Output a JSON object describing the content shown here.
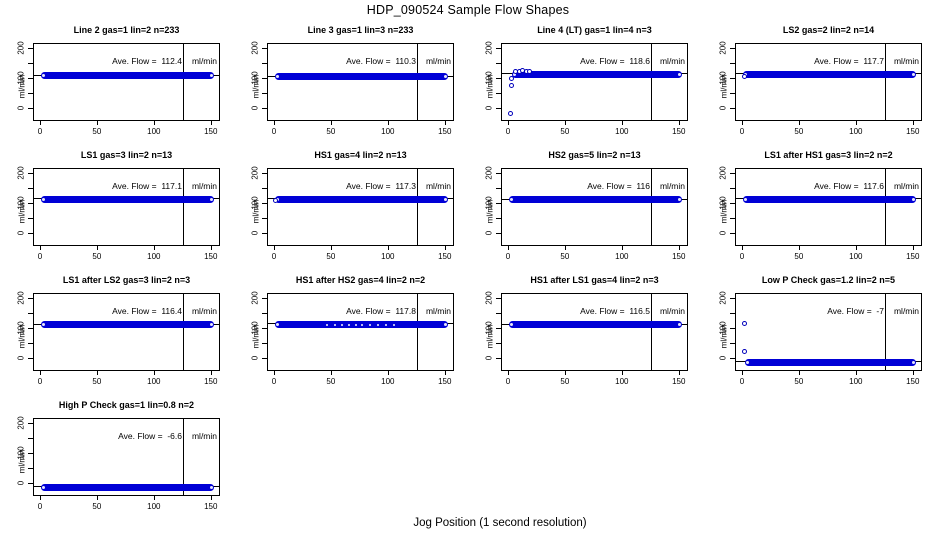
{
  "page": {
    "title": "HDP_090524  Sample Flow Shapes",
    "xlabel": "Jog Position (1 second resolution)"
  },
  "chart_data": {
    "type": "scatter",
    "title": "HDP_090524  Sample Flow Shapes",
    "xlabel": "Jog Position (1 second resolution)",
    "ylabel": "ml/min",
    "layout": {
      "rows": 4,
      "cols": 4,
      "filled_panels": 13,
      "grid": false
    },
    "x_ticks": [
      0,
      50,
      100,
      150
    ],
    "y_ticks_labeled": [
      0,
      100,
      200
    ],
    "y_ticks_minor": [
      50,
      150
    ],
    "xlim": [
      -6.1,
      158.1
    ],
    "ylim": [
      -43,
      217
    ],
    "vline_x": 125,
    "band_x_end": 152,
    "point_color": "#0000d6",
    "point_edge_color": "#0000bb",
    "annotation_y": 160,
    "panels": [
      {
        "title": "Line 2 gas=1 lin=2 n=233",
        "ave_flow": 112.4,
        "ave_text": "Ave. Flow =  112.4",
        "unit": "ml/min",
        "band_y": 112,
        "band_x_start": 0,
        "points": [],
        "gaps": []
      },
      {
        "title": "Line 3 gas=1 lin=3 n=233",
        "ave_flow": 110.3,
        "ave_text": "Ave. Flow =  110.3",
        "unit": "ml/min",
        "band_y": 110,
        "band_x_start": 0,
        "points": [],
        "gaps": []
      },
      {
        "title": "Line 4 (LT) gas=1 lin=4 n=3",
        "ave_flow": 118.6,
        "ave_text": "Ave. Flow =  118.6",
        "unit": "ml/min",
        "band_y": 116,
        "band_x_start": 3,
        "points": [
          [
            1,
            -13
          ],
          [
            2,
            80
          ],
          [
            2.5,
            103
          ],
          [
            6,
            124
          ],
          [
            9,
            127
          ],
          [
            12,
            128
          ],
          [
            15,
            127
          ],
          [
            18,
            124
          ]
        ],
        "gaps": []
      },
      {
        "title": "LS2 gas=2 lin=2 n=14",
        "ave_flow": 117.7,
        "ave_text": "Ave. Flow =  117.7",
        "unit": "ml/min",
        "band_y": 117,
        "band_x_start": 0,
        "points": [
          [
            1,
            110
          ]
        ],
        "gaps": []
      },
      {
        "title": "LS1 gas=3 lin=2 n=13",
        "ave_flow": 117.1,
        "ave_text": "Ave. Flow =  117.1",
        "unit": "ml/min",
        "band_y": 117,
        "band_x_start": 0,
        "points": [],
        "gaps": []
      },
      {
        "title": "HS1 gas=4 lin=2 n=13",
        "ave_flow": 117.3,
        "ave_text": "Ave. Flow =  117.3",
        "unit": "ml/min",
        "band_y": 117,
        "band_x_start": 0,
        "points": [
          [
            0.5,
            112
          ]
        ],
        "gaps": []
      },
      {
        "title": "HS2 gas=5 lin=2 n=13",
        "ave_flow": 116,
        "ave_text": "Ave. Flow =  116",
        "unit": "ml/min",
        "band_y": 116,
        "band_x_start": 0,
        "points": [],
        "gaps": []
      },
      {
        "title": "LS1 after HS1 gas=3 lin=2 n=2",
        "ave_flow": 117.6,
        "ave_text": "Ave. Flow =  117.6",
        "unit": "ml/min",
        "band_y": 117,
        "band_x_start": 0,
        "points": [],
        "gaps": []
      },
      {
        "title": "LS1 after LS2 gas=3 lin=2 n=3",
        "ave_flow": 116.4,
        "ave_text": "Ave. Flow =  116.4",
        "unit": "ml/min",
        "band_y": 116,
        "band_x_start": 0,
        "points": [],
        "gaps": []
      },
      {
        "title": "HS1 after HS2 gas=4 lin=2 n=2",
        "ave_flow": 117.8,
        "ave_text": "Ave. Flow =  117.8",
        "unit": "ml/min",
        "band_y": 117,
        "band_x_start": 0,
        "points": [],
        "gaps": [
          45,
          52,
          58,
          64,
          70,
          76,
          83,
          90,
          97,
          104
        ]
      },
      {
        "title": "HS1 after LS1 gas=4 lin=2 n=3",
        "ave_flow": 116.5,
        "ave_text": "Ave. Flow =  116.5",
        "unit": "ml/min",
        "band_y": 116,
        "band_x_start": 0,
        "points": [],
        "gaps": []
      },
      {
        "title": "Low P Check gas=1.2 lin=2 n=5",
        "ave_flow": -7,
        "ave_text": "Ave. Flow =  -7",
        "unit": "ml/min",
        "band_y": -12,
        "band_x_start": 2,
        "points": [
          [
            1,
            120
          ],
          [
            1.5,
            25
          ]
        ],
        "gaps": []
      },
      {
        "title": "High P Check gas=1 lin=0.8 n=2",
        "ave_flow": -6.6,
        "ave_text": "Ave. Flow =  -6.6",
        "unit": "ml/min",
        "band_y": -10,
        "band_x_start": 0,
        "points": [],
        "gaps": []
      }
    ]
  }
}
